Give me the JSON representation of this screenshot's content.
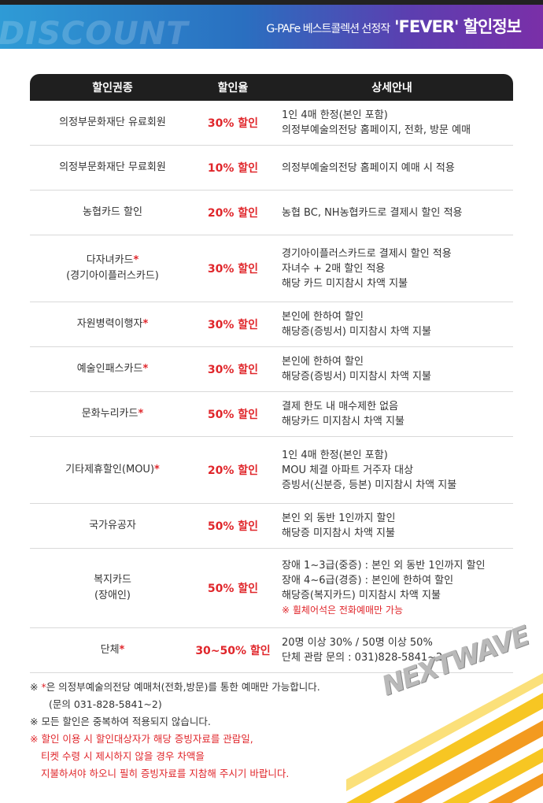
{
  "banner": {
    "bg_text": "DISCOUNT",
    "title_small": "G-PAFe 베스트콜렉션 선정작",
    "title_main": "'FEVER' 할인정보"
  },
  "table": {
    "headers": [
      "할인권종",
      "할인율",
      "상세안내"
    ],
    "rows": [
      {
        "name": "의정부문화재단 유료회원",
        "star": "",
        "rate": "30% 할인",
        "details": [
          "1인 4매 한정(본인 포함)",
          "의정부예술의전당 홈페이지, 전화, 방문 예매"
        ]
      },
      {
        "name": "의정부문화재단 무료회원",
        "star": "",
        "rate": "10% 할인",
        "details": [
          "의정부예술의전당 홈페이지 예매 시 적용"
        ]
      },
      {
        "name": "농협카드 할인",
        "star": "",
        "rate": "20% 할인",
        "details": [
          "농협 BC, NH농협카드로 결제시 할인 적용"
        ]
      },
      {
        "name": "다자녀카드",
        "name2": "(경기아이플러스카드)",
        "star": "*",
        "rate": "30% 할인",
        "details": [
          "경기아이플러스카드로 결제시 할인 적용",
          "자녀수 + 2매 할인 적용",
          "해당 카드 미지참시 차액 지불"
        ]
      },
      {
        "name": "자원병력이행자",
        "star": "*",
        "rate": "30% 할인",
        "details": [
          "본인에 한하여 할인",
          "해당증(증빙서) 미지참시 차액 지불"
        ]
      },
      {
        "name": "예술인패스카드",
        "star": "*",
        "rate": "30% 할인",
        "details": [
          "본인에 한하여 할인",
          "해당증(증빙서) 미지참시 차액 지불"
        ]
      },
      {
        "name": "문화누리카드",
        "star": "*",
        "rate": "50% 할인",
        "details": [
          "결제 한도 내 매수제한 없음",
          "해당카드 미지참시 차액 지불"
        ]
      },
      {
        "name": "기타제휴할인(MOU)",
        "star": "*",
        "rate": "20% 할인",
        "details": [
          "1인 4매 한정(본인 포함)",
          "MOU 체결 아파트 거주자 대상",
          "증빙서(신분증, 등본) 미지참시 차액 지불"
        ]
      },
      {
        "name": "국가유공자",
        "star": "",
        "rate": "50% 할인",
        "details": [
          "본인 외 동반 1인까지 할인",
          "해당증 미지참시 차액 지불"
        ]
      },
      {
        "name": "복지카드",
        "name2": "(장애인)",
        "star": "",
        "rate": "50% 할인",
        "details": [
          "장애 1~3급(중증) : 본인 외 동반 1인까지 할인",
          "장애 4~6급(경증) : 본인에 한하여 할인",
          "해당증(복지카드) 미지참시 차액 지불"
        ],
        "red_note": "※ 휠체어석은 전화예매만 가능"
      },
      {
        "name": "단체",
        "star": "*",
        "rate": "30~50% 할인",
        "details": [
          "20명 이상 30% / 50명 이상 50%",
          "단체 관람 문의 : 031)828-5841~2"
        ]
      }
    ]
  },
  "notes": {
    "line1_prefix": "※ ",
    "line1_star": "*",
    "line1_text": "은 의정부예술의전당 예매처(전화,방문)를 통한 예매만 가능합니다.",
    "line2": "(문의 031-828-5841~2)",
    "line3": "※ 모든 할인은 중복하여 적용되지 않습니다.",
    "red1": "※ 할인 이용 시 할인대상자가 해당 증빙자료를 관람일,",
    "red2": "티켓 수령 시 제시하지 않을 경우 차액을",
    "red3": "지불하셔야 하오니 필히 증빙자료를 지참해 주시기 바랍니다."
  },
  "deco": {
    "logo_text": "NEXTWAVE"
  },
  "colors": {
    "accent_red": "#e0262b",
    "header_dark": "#1f1f1f",
    "stripe_yellow": "#f7c623",
    "stripe_orange": "#f39a1f"
  }
}
